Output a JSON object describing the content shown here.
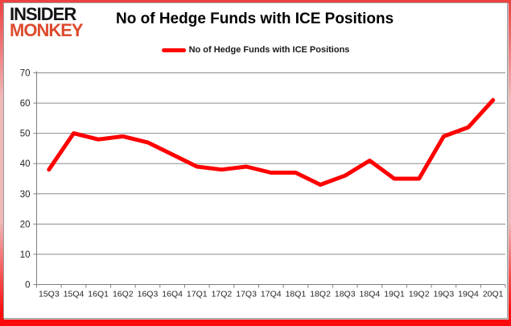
{
  "branding": {
    "logo_line1": "INSIDER",
    "logo_line2": "MONKEY"
  },
  "header": {
    "title": "No of Hedge Funds with ICE Positions"
  },
  "legend": {
    "label": "No of Hedge Funds with ICE Positions",
    "swatch_color": "#fe0000"
  },
  "chart_data": {
    "type": "line",
    "title": "No of Hedge Funds with ICE Positions",
    "categories": [
      "15Q3",
      "15Q4",
      "16Q1",
      "16Q2",
      "16Q3",
      "16Q4",
      "17Q1",
      "17Q2",
      "17Q3",
      "17Q4",
      "18Q1",
      "18Q2",
      "18Q3",
      "18Q4",
      "19Q1",
      "19Q2",
      "19Q3",
      "19Q4",
      "20Q1"
    ],
    "series": [
      {
        "name": "No of Hedge Funds with ICE Positions",
        "color": "#fe0000",
        "values": [
          38,
          50,
          48,
          49,
          47,
          43,
          39,
          38,
          39,
          37,
          37,
          33,
          36,
          41,
          35,
          35,
          49,
          52,
          61
        ]
      }
    ],
    "xlabel": "",
    "ylabel": "",
    "ylim": [
      0,
      70
    ],
    "yticks": [
      0,
      10,
      20,
      30,
      40,
      50,
      60,
      70
    ],
    "grid": true,
    "legend_position": "top-center"
  },
  "colors": {
    "line": "#fe0000",
    "gridline": "#8c8c8c",
    "axis": "#7f7f7f",
    "tick_label": "#262626",
    "frame_red": "#fb0b0b",
    "logo_black": "#141414",
    "logo_orange": "#dd4b2e"
  }
}
